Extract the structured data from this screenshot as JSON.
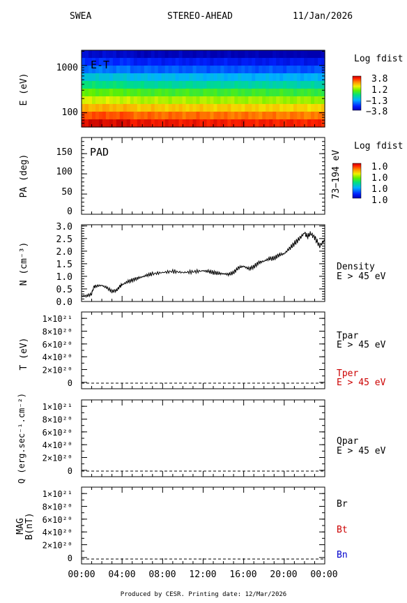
{
  "header": {
    "instrument": "SWEA",
    "spacecraft": "STEREO-AHEAD",
    "date": "11/Jan/2026"
  },
  "footer": "Produced by CESR.   Printing date: 12/Mar/2026",
  "colors": {
    "frame": "#000000",
    "tper": "#cc0000",
    "bt": "#cc0000",
    "bn": "#0000cc"
  },
  "chart_data": [
    {
      "type": "heatmap",
      "panel_label": "E-T",
      "ylabel": "E (eV)",
      "yscale": "log",
      "ylim": [
        50,
        2100
      ],
      "yticks": [
        "1000",
        "100"
      ],
      "colorbar": {
        "title": "Log fdist",
        "ticks": [
          "3.8",
          "1.2",
          "−1.3",
          "−3.8"
        ]
      },
      "energy_bands_top_to_bottom": [
        -3.6,
        -2.9,
        -2.2,
        -1.3,
        -0.5,
        0.4,
        1.2,
        2.0,
        2.8,
        3.5
      ],
      "x": [
        "00:00",
        "04:00",
        "08:00",
        "12:00",
        "16:00",
        "20:00",
        "00:00"
      ]
    },
    {
      "type": "heatmap",
      "panel_label": "PAD",
      "ylabel": "PA (deg)",
      "ylim": [
        0,
        180
      ],
      "yticks": [
        "150",
        "100",
        "50",
        "0"
      ],
      "right_label": "73−194 eV",
      "colorbar": {
        "title": "Log fdist",
        "ticks": [
          "1.0",
          "1.0",
          "1.0",
          "1.0"
        ]
      }
    },
    {
      "type": "line",
      "ylabel": "N (cm⁻³)",
      "ylim": [
        0,
        3.0
      ],
      "yticks": [
        "3.0",
        "2.5",
        "2.0",
        "1.5",
        "1.0",
        "0.5",
        "0.0"
      ],
      "series": [
        {
          "name": "Density",
          "label2": "E > 45 eV",
          "x_hours": [
            0,
            0.5,
            1.0,
            1.2,
            1.5,
            2.0,
            2.5,
            3.0,
            3.5,
            3.8,
            4.0,
            4.5,
            5.0,
            5.5,
            6.0,
            6.5,
            7.0,
            8.0,
            9.0,
            10.0,
            11.0,
            12.0,
            12.5,
            13.0,
            13.5,
            14.0,
            14.5,
            15.0,
            15.5,
            16.0,
            16.5,
            17.0,
            17.5,
            18.0,
            18.5,
            19.0,
            19.5,
            20.0,
            20.5,
            21.0,
            21.5,
            22.0,
            22.3,
            22.6,
            23.0,
            23.5,
            24.0
          ],
          "values": [
            0.22,
            0.22,
            0.3,
            0.58,
            0.62,
            0.64,
            0.55,
            0.4,
            0.45,
            0.62,
            0.66,
            0.78,
            0.85,
            0.92,
            0.98,
            1.05,
            1.1,
            1.15,
            1.2,
            1.15,
            1.18,
            1.22,
            1.2,
            1.15,
            1.12,
            1.1,
            1.08,
            1.15,
            1.35,
            1.4,
            1.3,
            1.38,
            1.55,
            1.6,
            1.7,
            1.72,
            1.85,
            1.9,
            2.1,
            2.3,
            2.5,
            2.72,
            2.58,
            2.7,
            2.55,
            2.2,
            2.45
          ]
        }
      ]
    },
    {
      "type": "line",
      "ylabel": "T (eV)",
      "ylim": [
        0,
        1.1e+21
      ],
      "yticks": [
        "1×10²¹",
        "8×10²⁰",
        "6×10²⁰",
        "4×10²⁰",
        "2×10²⁰",
        "0"
      ],
      "legend": [
        {
          "name": "Tpar",
          "label2": "E > 45 eV"
        },
        {
          "name": "Tper",
          "label2": "E > 45 eV"
        }
      ],
      "zero_line": "dashed"
    },
    {
      "type": "line",
      "ylabel": "Q (erg.sec⁻¹.cm⁻²)",
      "ylim": [
        0,
        1.1e+21
      ],
      "yticks": [
        "1×10²¹",
        "8×10²⁰",
        "6×10²⁰",
        "4×10²⁰",
        "2×10²⁰",
        "0"
      ],
      "legend": [
        {
          "name": "Qpar",
          "label2": "E > 45 eV"
        }
      ],
      "zero_line": "dashed"
    },
    {
      "type": "line",
      "ylabel": "MAG",
      "ylabel2": "B(nT)",
      "ylim": [
        0,
        1.1e+21
      ],
      "yticks": [
        "1×10²¹",
        "8×10²⁰",
        "6×10²⁰",
        "4×10²⁰",
        "2×10²⁰",
        "0"
      ],
      "legend": [
        {
          "name": "Br"
        },
        {
          "name": "Bt"
        },
        {
          "name": "Bn"
        }
      ],
      "zero_line": "dashed",
      "xticks": [
        "00:00",
        "04:00",
        "08:00",
        "12:00",
        "16:00",
        "20:00",
        "00:00"
      ]
    }
  ]
}
